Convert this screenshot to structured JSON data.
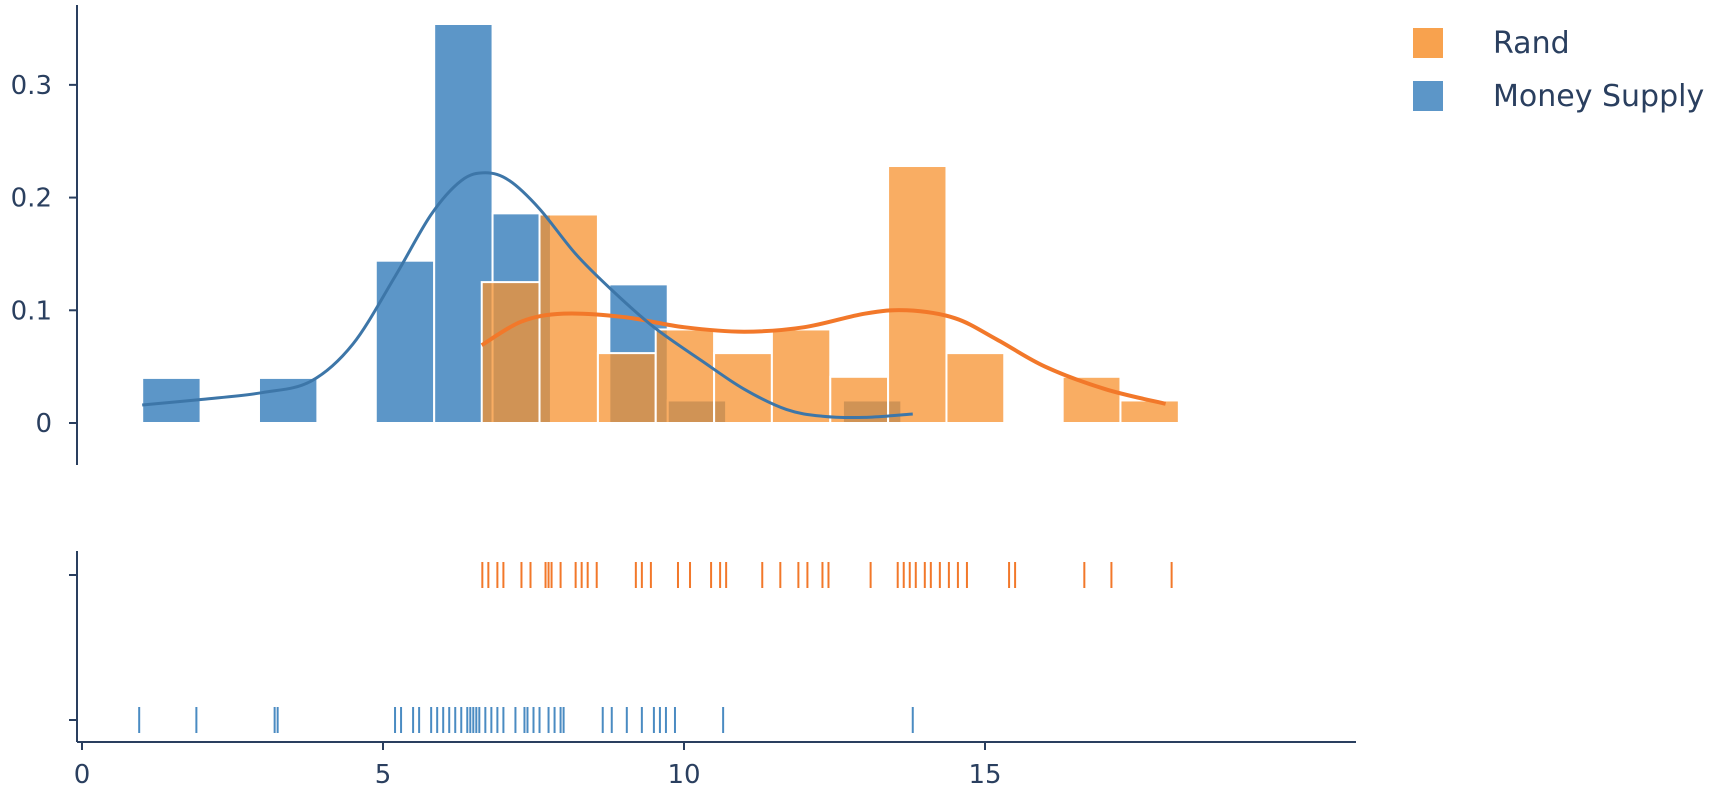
{
  "chart_data": {
    "type": "histogram",
    "x_ticks": [
      0,
      5,
      10,
      15
    ],
    "xlim": [
      -0.3,
      19.2
    ],
    "hist_y_ticks": [
      0,
      0.1,
      0.2,
      0.3
    ],
    "hist_ylim": [
      0,
      0.36
    ],
    "legend_position": "top-right",
    "series": [
      {
        "name": "Rand",
        "color": "#f7922f",
        "bins": [
          {
            "x0": 6.64,
            "x1": 7.6,
            "density": 0.125
          },
          {
            "x0": 7.6,
            "x1": 8.57,
            "density": 0.185
          },
          {
            "x0": 8.57,
            "x1": 9.53,
            "density": 0.062
          },
          {
            "x0": 9.53,
            "x1": 10.5,
            "density": 0.083
          },
          {
            "x0": 10.5,
            "x1": 11.46,
            "density": 0.062
          },
          {
            "x0": 11.46,
            "x1": 12.43,
            "density": 0.083
          },
          {
            "x0": 12.43,
            "x1": 13.39,
            "density": 0.041
          },
          {
            "x0": 13.39,
            "x1": 14.36,
            "density": 0.228
          },
          {
            "x0": 14.36,
            "x1": 15.32,
            "density": 0.062
          },
          {
            "x0": 15.32,
            "x1": 16.29,
            "density": 0
          },
          {
            "x0": 16.29,
            "x1": 17.25,
            "density": 0.041
          },
          {
            "x0": 17.25,
            "x1": 18.22,
            "density": 0.02
          }
        ],
        "kde": [
          [
            6.64,
            0.069
          ],
          [
            7.3,
            0.09
          ],
          [
            8.0,
            0.097
          ],
          [
            9.0,
            0.094
          ],
          [
            10.0,
            0.085
          ],
          [
            11.0,
            0.081
          ],
          [
            12.0,
            0.085
          ],
          [
            13.0,
            0.097
          ],
          [
            13.7,
            0.1
          ],
          [
            14.5,
            0.093
          ],
          [
            15.2,
            0.074
          ],
          [
            16.0,
            0.05
          ],
          [
            17.0,
            0.03
          ],
          [
            18.0,
            0.017
          ]
        ],
        "rug": [
          6.65,
          6.75,
          6.9,
          7.0,
          7.3,
          7.45,
          7.7,
          7.75,
          7.8,
          7.95,
          8.2,
          8.3,
          8.4,
          8.55,
          9.2,
          9.3,
          9.45,
          9.9,
          10.1,
          10.45,
          10.6,
          10.7,
          11.3,
          11.6,
          11.9,
          12.05,
          12.3,
          12.4,
          13.1,
          13.55,
          13.65,
          13.75,
          13.85,
          14.0,
          14.1,
          14.25,
          14.4,
          14.55,
          14.7,
          15.4,
          15.5,
          16.65,
          17.1,
          18.1
        ]
      },
      {
        "name": "Money Supply",
        "color": "#4a8bc2",
        "bins": [
          {
            "x0": 1.0,
            "x1": 1.97,
            "density": 0.04
          },
          {
            "x0": 1.97,
            "x1": 2.94,
            "density": 0
          },
          {
            "x0": 2.94,
            "x1": 3.91,
            "density": 0.04
          },
          {
            "x0": 3.91,
            "x1": 4.88,
            "density": 0
          },
          {
            "x0": 4.88,
            "x1": 5.85,
            "density": 0.144
          },
          {
            "x0": 5.85,
            "x1": 6.82,
            "density": 0.354
          },
          {
            "x0": 6.82,
            "x1": 7.79,
            "density": 0.186
          },
          {
            "x0": 7.79,
            "x1": 8.76,
            "density": 0
          },
          {
            "x0": 8.76,
            "x1": 9.73,
            "density": 0.123
          },
          {
            "x0": 9.73,
            "x1": 10.7,
            "density": 0.02
          },
          {
            "x0": 10.7,
            "x1": 11.67,
            "density": 0
          },
          {
            "x0": 11.67,
            "x1": 12.64,
            "density": 0
          },
          {
            "x0": 12.64,
            "x1": 13.61,
            "density": 0.02
          }
        ],
        "kde": [
          [
            1.0,
            0.016
          ],
          [
            2.0,
            0.021
          ],
          [
            3.0,
            0.027
          ],
          [
            3.8,
            0.037
          ],
          [
            4.5,
            0.07
          ],
          [
            5.2,
            0.13
          ],
          [
            5.8,
            0.185
          ],
          [
            6.3,
            0.215
          ],
          [
            6.7,
            0.222
          ],
          [
            7.1,
            0.215
          ],
          [
            7.6,
            0.19
          ],
          [
            8.2,
            0.15
          ],
          [
            8.8,
            0.118
          ],
          [
            9.5,
            0.085
          ],
          [
            10.3,
            0.055
          ],
          [
            11.0,
            0.03
          ],
          [
            11.7,
            0.012
          ],
          [
            12.3,
            0.006
          ],
          [
            13.0,
            0.005
          ],
          [
            13.8,
            0.008
          ]
        ],
        "rug": [
          0.95,
          1.9,
          3.2,
          3.25,
          5.2,
          5.3,
          5.5,
          5.6,
          5.8,
          5.9,
          6.0,
          6.1,
          6.2,
          6.3,
          6.4,
          6.45,
          6.5,
          6.55,
          6.6,
          6.7,
          6.8,
          6.9,
          7.0,
          7.2,
          7.35,
          7.4,
          7.5,
          7.6,
          7.75,
          7.85,
          7.95,
          8.0,
          8.65,
          8.8,
          9.05,
          9.3,
          9.5,
          9.6,
          9.7,
          9.85,
          10.65,
          13.8
        ]
      }
    ]
  }
}
